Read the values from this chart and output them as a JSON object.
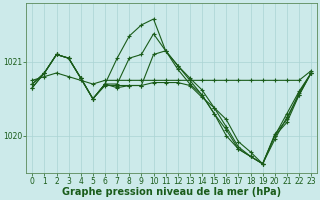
{
  "title": "Graphe pression niveau de la mer (hPa)",
  "background_color": "#cceaea",
  "line_color": "#1a5c1a",
  "grid_color": "#b0d8d8",
  "lines": [
    {
      "x": [
        0,
        1,
        2,
        3,
        4,
        5,
        6,
        7,
        8,
        9,
        10,
        11,
        12,
        13,
        14,
        15,
        16,
        17,
        18,
        19,
        20,
        21,
        22,
        23
      ],
      "y": [
        1020.75,
        1020.8,
        1020.85,
        1020.8,
        1020.75,
        1020.7,
        1020.75,
        1020.75,
        1020.75,
        1020.75,
        1020.75,
        1020.75,
        1020.75,
        1020.75,
        1020.75,
        1020.75,
        1020.75,
        1020.75,
        1020.75,
        1020.75,
        1020.75,
        1020.75,
        1020.75,
        1020.88
      ]
    },
    {
      "x": [
        0,
        1,
        2,
        3,
        4,
        5,
        6,
        7,
        8,
        9,
        10,
        11,
        12,
        13,
        14,
        15,
        16,
        17,
        18,
        19,
        20,
        21,
        22,
        23
      ],
      "y": [
        1020.7,
        1020.85,
        1021.1,
        1021.05,
        1020.78,
        1020.5,
        1020.7,
        1021.05,
        1021.35,
        1021.5,
        1021.58,
        1021.15,
        1020.9,
        1020.7,
        1020.55,
        1020.3,
        1020.0,
        1019.82,
        1019.72,
        1019.62,
        1019.95,
        1020.25,
        1020.55,
        1020.85
      ]
    },
    {
      "x": [
        0,
        1,
        2,
        3,
        4,
        5,
        6,
        7,
        8,
        9,
        10,
        11,
        12,
        13,
        14,
        15,
        16,
        17,
        18,
        19,
        20,
        21,
        22,
        23
      ],
      "y": [
        1020.7,
        1020.85,
        1021.1,
        1021.05,
        1020.78,
        1020.5,
        1020.7,
        1020.7,
        1021.05,
        1021.1,
        1021.38,
        1021.15,
        1020.95,
        1020.78,
        1020.62,
        1020.38,
        1020.12,
        1019.85,
        1019.72,
        1019.62,
        1020.0,
        1020.3,
        1020.6,
        1020.85
      ]
    },
    {
      "x": [
        0,
        1,
        2,
        3,
        4,
        5,
        6,
        7,
        8,
        9,
        10,
        11,
        12,
        13,
        14,
        15,
        16,
        17,
        18,
        19,
        20,
        21,
        22,
        23
      ],
      "y": [
        1020.65,
        1020.85,
        1021.1,
        1021.05,
        1020.78,
        1020.5,
        1020.7,
        1020.65,
        1020.68,
        1020.68,
        1021.1,
        1021.15,
        1020.95,
        1020.75,
        1020.55,
        1020.3,
        1020.08,
        1019.82,
        1019.72,
        1019.62,
        1020.0,
        1020.18,
        1020.55,
        1020.85
      ]
    },
    {
      "x": [
        0,
        1,
        2,
        3,
        4,
        5,
        6,
        7,
        8,
        9,
        10,
        11,
        12,
        13,
        14,
        15,
        16,
        17,
        18,
        19,
        20,
        21,
        22,
        23
      ],
      "y": [
        1020.65,
        1020.85,
        1021.1,
        1021.05,
        1020.78,
        1020.5,
        1020.68,
        1020.68,
        1020.68,
        1020.68,
        1020.72,
        1020.72,
        1020.72,
        1020.68,
        1020.52,
        1020.38,
        1020.22,
        1019.92,
        1019.78,
        1019.62,
        1020.02,
        1020.22,
        1020.58,
        1020.85
      ]
    }
  ],
  "yticks": [
    1020,
    1021
  ],
  "ylim": [
    1019.5,
    1021.8
  ],
  "xlim": [
    -0.5,
    23.5
  ],
  "xtick_labels": [
    "0",
    "1",
    "2",
    "3",
    "4",
    "5",
    "6",
    "7",
    "8",
    "9",
    "10",
    "11",
    "12",
    "13",
    "14",
    "15",
    "16",
    "17",
    "18",
    "19",
    "20",
    "21",
    "22",
    "23"
  ],
  "marker": "+",
  "marker_size": 3,
  "linewidth": 0.8,
  "title_fontsize": 7,
  "tick_fontsize": 5.5
}
